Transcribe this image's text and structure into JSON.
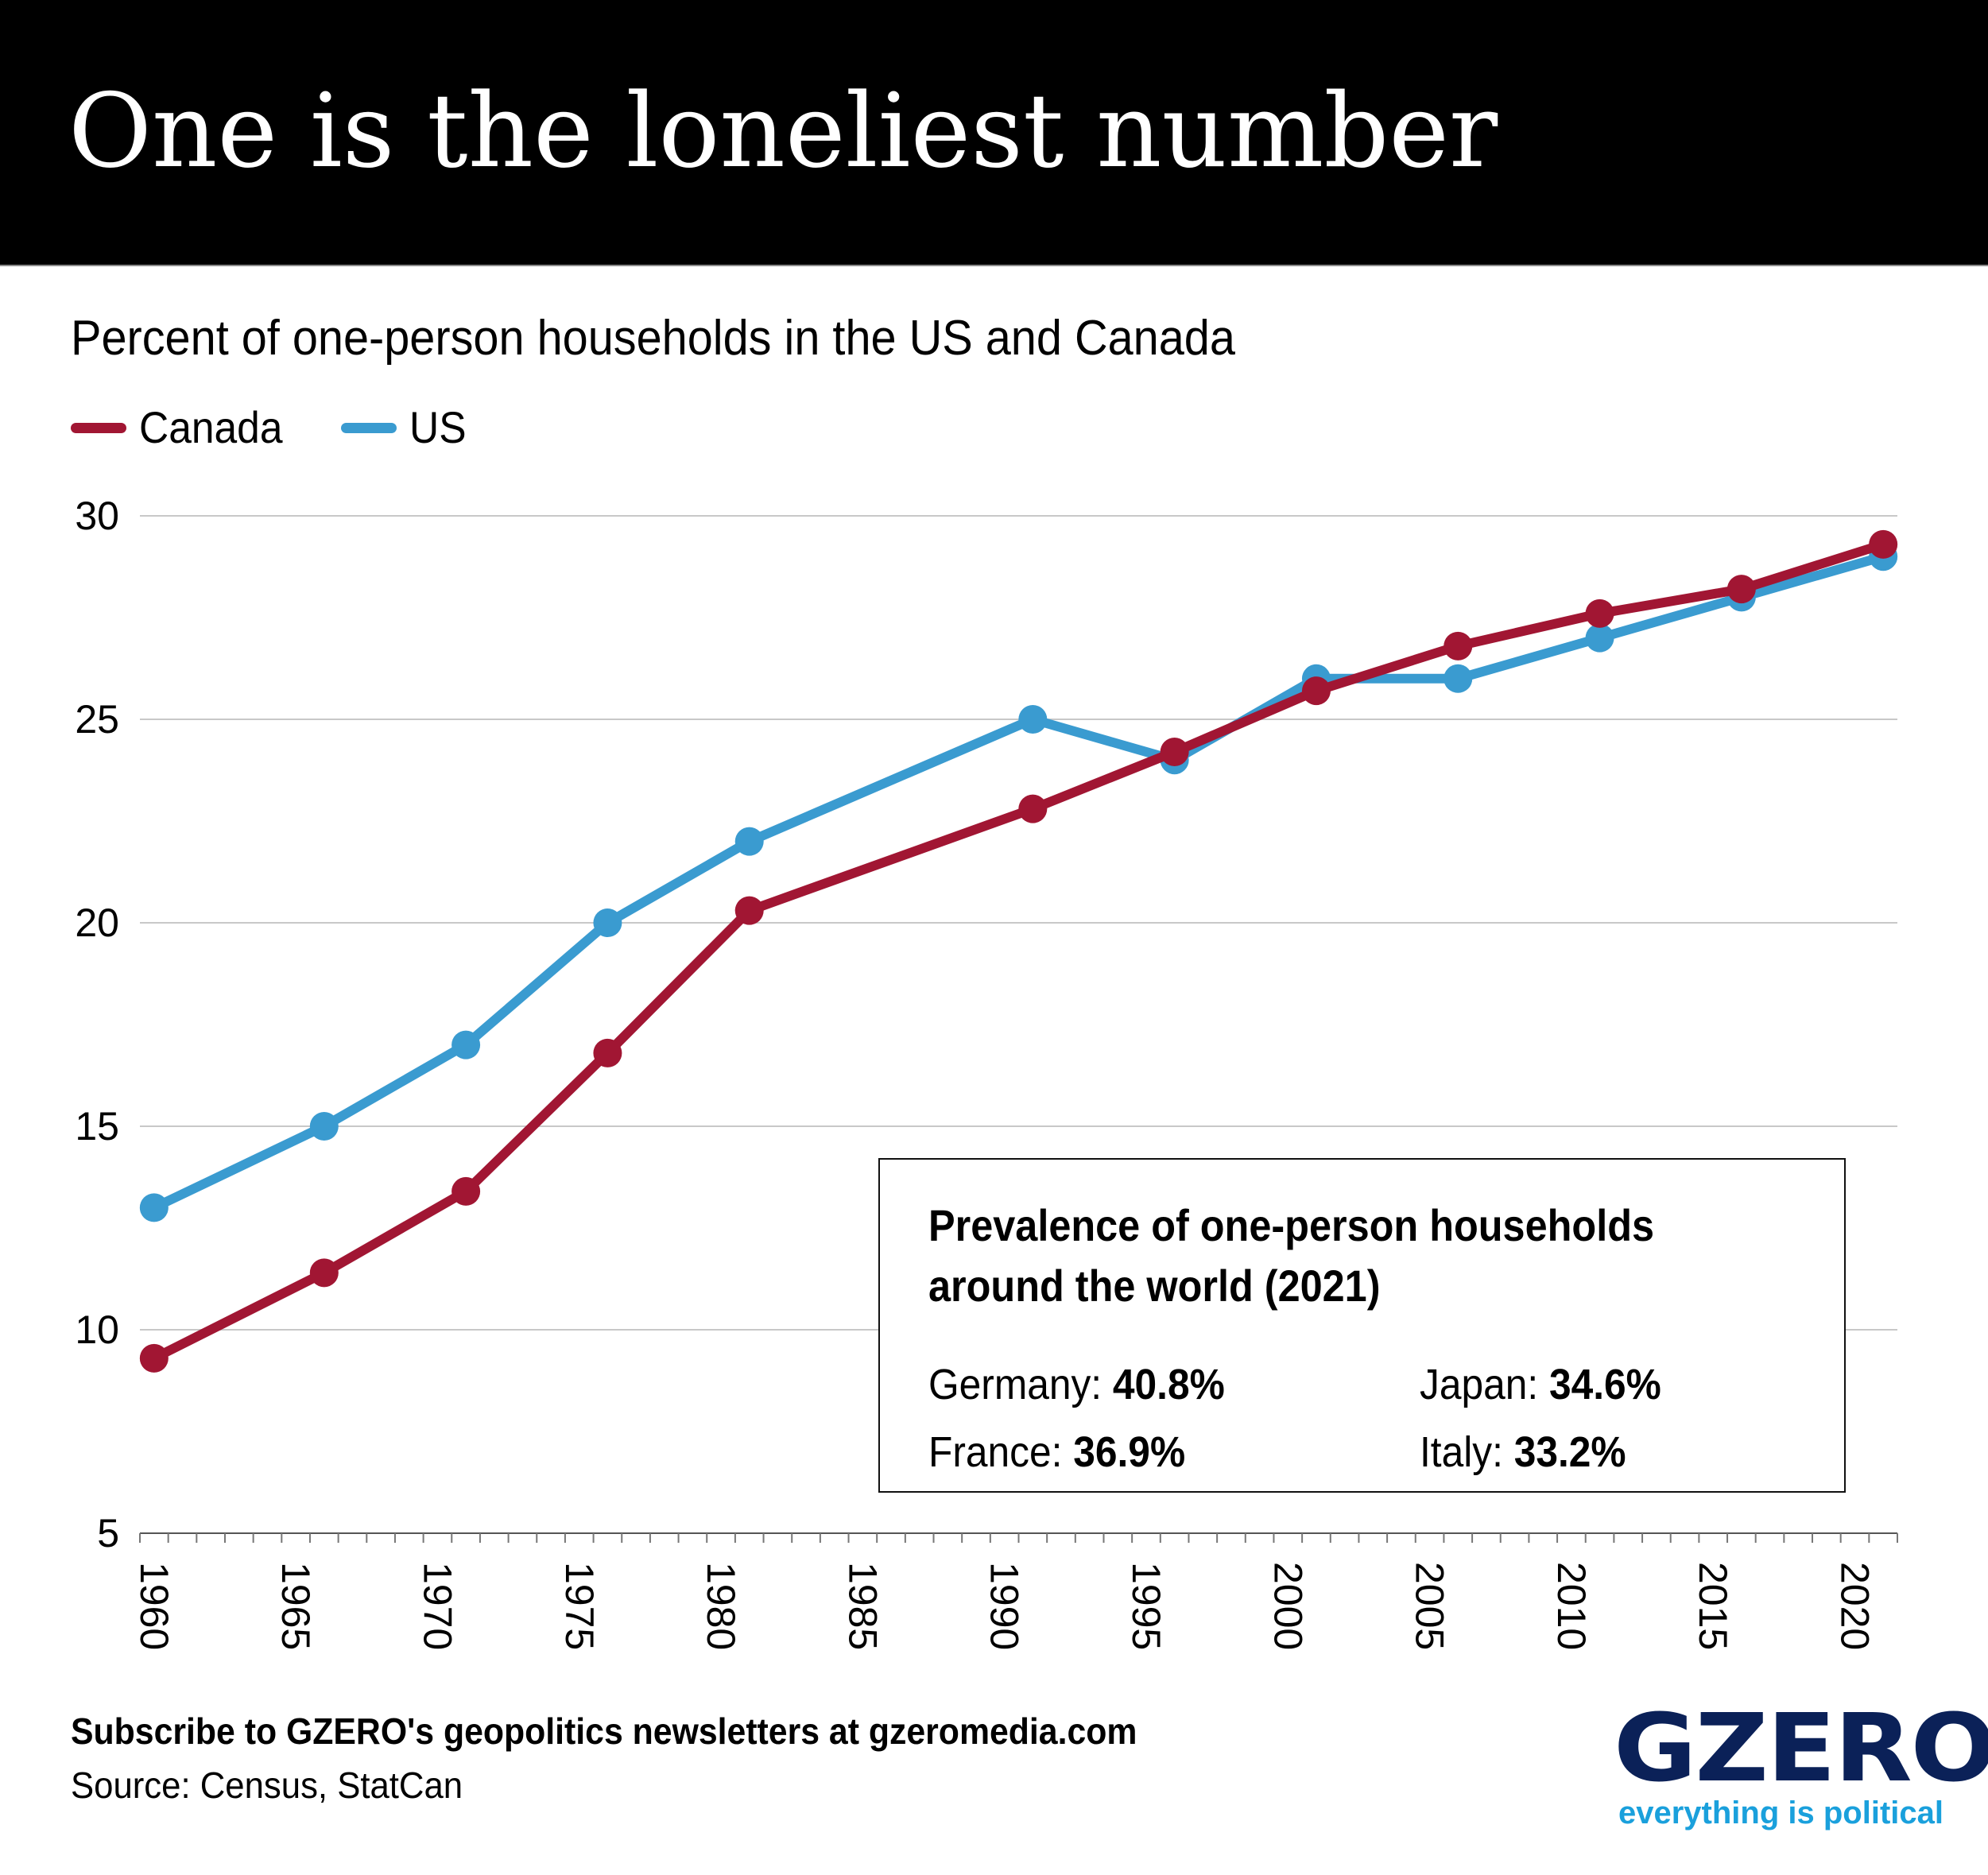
{
  "header": {
    "title": "One is the loneliest number"
  },
  "subtitle": "Percent of one-person households in the US and Canada",
  "legend": [
    {
      "label": "Canada",
      "color": "#a11633"
    },
    {
      "label": "US",
      "color": "#3a9bd0"
    }
  ],
  "chart_data": {
    "type": "line",
    "title": "One is the loneliest number",
    "subtitle": "Percent of one-person households in the US and Canada",
    "xlabel": "",
    "ylabel": "",
    "x": [
      1960,
      1966,
      1971,
      1976,
      1981,
      1991,
      1996,
      2001,
      2006,
      2011,
      2016,
      2021
    ],
    "series": [
      {
        "name": "Canada",
        "color": "#a11633",
        "values": [
          9.3,
          11.4,
          13.4,
          16.8,
          20.3,
          22.8,
          24.2,
          25.7,
          26.8,
          27.6,
          28.2,
          29.3
        ]
      },
      {
        "name": "US",
        "color": "#3a9bd0",
        "values": [
          13.0,
          15.0,
          17.0,
          20.0,
          22.0,
          25.0,
          24.0,
          26.0,
          26.0,
          27.0,
          28.0,
          29.0
        ]
      }
    ],
    "xlim": [
      1960,
      2021
    ],
    "ylim": [
      5,
      30
    ],
    "yticks": [
      5,
      10,
      15,
      20,
      25,
      30
    ],
    "xticks": [
      "1960",
      "1965",
      "1970",
      "1975",
      "1980",
      "1985",
      "1990",
      "1995",
      "2000",
      "2005",
      "2010",
      "2015",
      "2020"
    ],
    "grid": true,
    "legend_position": "top-left",
    "markers": true
  },
  "inset": {
    "heading": [
      "Prevalence of one-person households",
      "around the world (2021)"
    ],
    "items": [
      {
        "country": "Germany:",
        "value": "40.8%"
      },
      {
        "country": "Japan:",
        "value": "34.6%"
      },
      {
        "country": "France:",
        "value": "36.9%"
      },
      {
        "country": "Italy:",
        "value": "33.2%"
      }
    ]
  },
  "footer": {
    "cta": "Subscribe to GZERO's geopolitics newsletters at gzeromedia.com",
    "source": "Source: Census, StatCan"
  },
  "logo": {
    "wordmark": "GZERO",
    "tagline": "everything is political",
    "wordmark_color": "#0b2158",
    "tagline_color": "#1aa0dc"
  }
}
